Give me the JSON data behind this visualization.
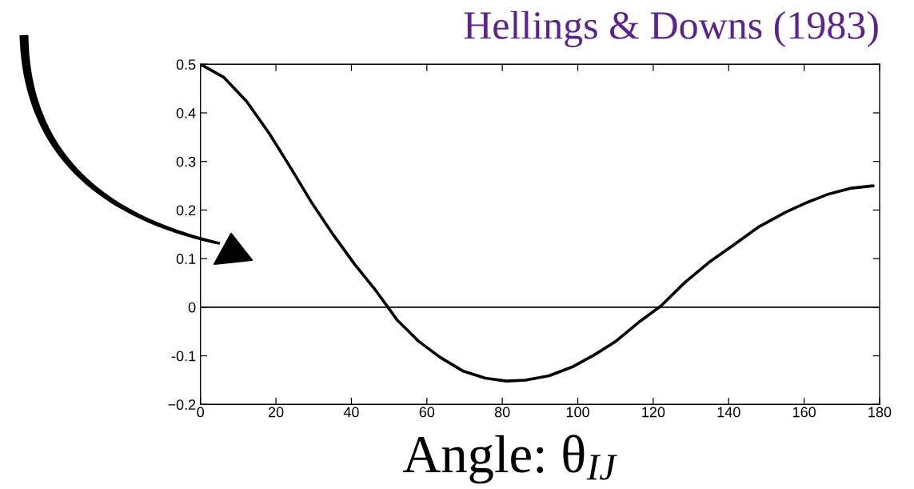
{
  "chart_data": {
    "type": "line",
    "title": "Hellings & Downs (1983)",
    "xlabel": "Angle: θ$_{IJ}$",
    "x": [
      0,
      6.2,
      12.2,
      18.2,
      23.9,
      29.5,
      35.2,
      40.8,
      46.5,
      52.1,
      57.8,
      63.5,
      69.5,
      75.5,
      81.1,
      86.1,
      92.4,
      98.8,
      104.4,
      110.1,
      116.5,
      122.1,
      128.4,
      134.7,
      141.1,
      148.1,
      155.2,
      160.9,
      166.5,
      172.5,
      178.3
    ],
    "series": [
      {
        "color": "#000000",
        "values": [
          0.5,
          0.473,
          0.424,
          0.358,
          0.287,
          0.215,
          0.149,
          0.089,
          0.034,
          -0.026,
          -0.07,
          -0.103,
          -0.131,
          -0.146,
          -0.152,
          -0.15,
          -0.141,
          -0.122,
          -0.098,
          -0.07,
          -0.029,
          0.003,
          0.051,
          0.092,
          0.127,
          0.166,
          0.196,
          0.216,
          0.233,
          0.245,
          0.25
        ]
      }
    ],
    "xlim": [
      0,
      180
    ],
    "ylim": [
      -0.2,
      0.5
    ],
    "xticks": [
      0,
      20,
      40,
      60,
      80,
      100,
      120,
      140,
      160,
      180
    ],
    "yticks": [
      {
        "value": -0.2,
        "label": "−0.2"
      },
      -0.1,
      0,
      0.1,
      0.2,
      0.3,
      0.4,
      0.5
    ],
    "ref_lines": [
      {
        "axis": "y",
        "value": 0,
        "color": "#000000"
      }
    ],
    "line_style": "solid"
  }
}
